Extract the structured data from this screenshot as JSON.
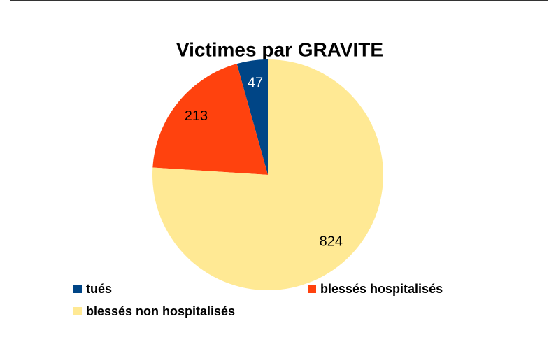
{
  "chart_data": {
    "type": "pie",
    "title": "Victimes par GRAVITE",
    "categories": [
      "tués",
      "blessés hospitalisés",
      "blessés non hospitalisés"
    ],
    "values": [
      47,
      213,
      824
    ],
    "colors": [
      "#004586",
      "#ff420e",
      "#ffe994"
    ],
    "label_colors": [
      "#ffffff",
      "#000000",
      "#000000"
    ],
    "legend": "bottom"
  }
}
